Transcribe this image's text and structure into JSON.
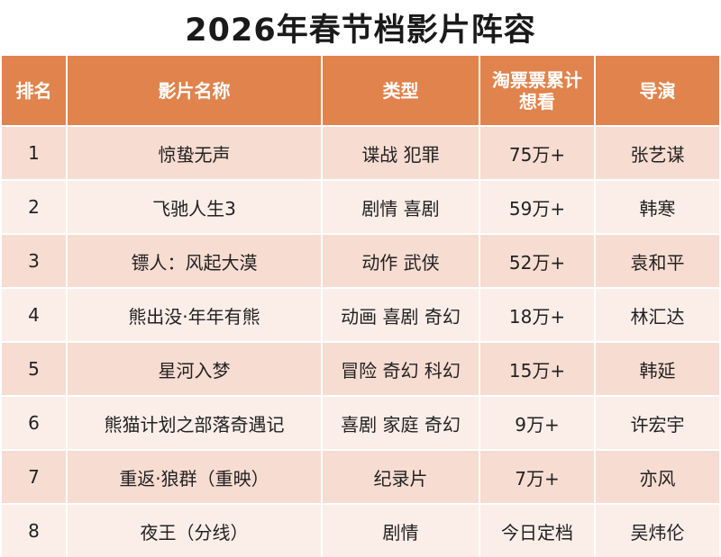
{
  "title": "2026年春节档影片阵容",
  "headers": {
    "rank": "排名",
    "film": "影片名称",
    "genre": "类型",
    "wish": "淘票票累计想看",
    "director": "导演"
  },
  "rows": [
    {
      "rank": "1",
      "film": "惊蛰无声",
      "genre": "谍战 犯罪",
      "wish": "75万+",
      "director": "张艺谋"
    },
    {
      "rank": "2",
      "film": "飞驰人生3",
      "genre": "剧情 喜剧",
      "wish": "59万+",
      "director": "韩寒"
    },
    {
      "rank": "3",
      "film": "镖人：风起大漠",
      "genre": "动作 武侠",
      "wish": "52万+",
      "director": "袁和平"
    },
    {
      "rank": "4",
      "film": "熊出没·年年有熊",
      "genre": "动画 喜剧 奇幻",
      "wish": "18万+",
      "director": "林汇达"
    },
    {
      "rank": "5",
      "film": "星河入梦",
      "genre": "冒险 奇幻 科幻",
      "wish": "15万+",
      "director": "韩延"
    },
    {
      "rank": "6",
      "film": "熊猫计划之部落奇遇记",
      "genre": "喜剧 家庭 奇幻",
      "wish": "9万+",
      "director": "许宏宇"
    },
    {
      "rank": "7",
      "film": "重返·狼群（重映）",
      "genre": "纪录片",
      "wish": "7万+",
      "director": "亦风"
    },
    {
      "rank": "8",
      "film": "夜王（分线）",
      "genre": "剧情",
      "wish": "今日定档",
      "director": "吴炜伦"
    }
  ],
  "colors": {
    "header_bg": "#e0834c",
    "row_odd_bg": "#f7dcd1",
    "row_even_bg": "#fbeee8"
  }
}
